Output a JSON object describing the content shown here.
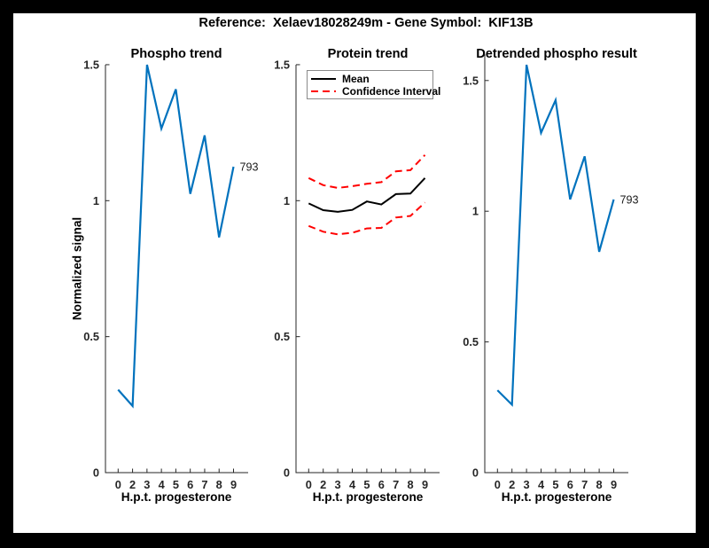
{
  "figure": {
    "title": "Reference:  Xelaev18028249m - Gene Symbol:  KIF13B"
  },
  "colors": {
    "blue": "#0072bd",
    "red": "#ff0000",
    "black": "#000000",
    "axis": "#262626",
    "frame": "#000000",
    "canvas": "#ffffff"
  },
  "shared": {
    "xlabel": "H.p.t. progesterone",
    "ylabel": "Normalized signal"
  },
  "chart_data": [
    {
      "type": "line",
      "title": "Phospho trend",
      "xlabel": "H.p.t. progesterone",
      "ylabel": "Normalized signal",
      "x_categories": [
        "0",
        "2",
        "3",
        "4",
        "5",
        "6",
        "7",
        "8",
        "9"
      ],
      "ylim": [
        0,
        1.5
      ],
      "yticks": [
        0,
        0.5,
        1,
        1.5
      ],
      "grid": false,
      "series": [
        {
          "name": "phospho-signal",
          "color": "#0072bd",
          "width": 2.2,
          "values": [
            0.305,
            0.245,
            1.5,
            1.265,
            1.41,
            1.025,
            1.24,
            0.865,
            1.125
          ]
        }
      ],
      "end_label": "793"
    },
    {
      "type": "line",
      "title": "Protein trend",
      "xlabel": "H.p.t. progesterone",
      "x_categories": [
        "0",
        "2",
        "3",
        "4",
        "5",
        "6",
        "7",
        "8",
        "9"
      ],
      "ylim": [
        0,
        1.5
      ],
      "yticks": [
        0,
        0.5,
        1,
        1.5
      ],
      "grid": false,
      "legend": {
        "position": "top-left",
        "items": [
          {
            "label": "Mean",
            "style": "solid-black"
          },
          {
            "label": "Confidence Interval",
            "style": "dashed-red"
          }
        ]
      },
      "series": [
        {
          "name": "mean",
          "color": "#000000",
          "width": 2,
          "values": [
            0.99,
            0.965,
            0.959,
            0.966,
            0.997,
            0.986,
            1.024,
            1.026,
            1.083
          ]
        },
        {
          "name": "ci-upper",
          "color": "#ff0000",
          "width": 2,
          "dash": "8 5",
          "values": [
            1.083,
            1.057,
            1.047,
            1.053,
            1.062,
            1.068,
            1.108,
            1.112,
            1.168
          ]
        },
        {
          "name": "ci-lower",
          "color": "#ff0000",
          "width": 2,
          "dash": "8 5",
          "values": [
            0.907,
            0.886,
            0.876,
            0.882,
            0.898,
            0.9,
            0.938,
            0.944,
            0.993
          ]
        }
      ]
    },
    {
      "type": "line",
      "title": "Detrended phospho result",
      "xlabel": "H.p.t. progesterone",
      "x_categories": [
        "0",
        "2",
        "3",
        "4",
        "5",
        "6",
        "7",
        "8",
        "9"
      ],
      "ylim": [
        0,
        1.6
      ],
      "yticks": [
        0,
        0.5,
        1,
        1.5
      ],
      "grid": false,
      "series": [
        {
          "name": "detrended-phospho",
          "color": "#0072bd",
          "width": 2.2,
          "values": [
            0.315,
            0.26,
            1.56,
            1.3,
            1.425,
            1.045,
            1.21,
            0.845,
            1.045
          ]
        }
      ],
      "end_label": "793"
    }
  ]
}
